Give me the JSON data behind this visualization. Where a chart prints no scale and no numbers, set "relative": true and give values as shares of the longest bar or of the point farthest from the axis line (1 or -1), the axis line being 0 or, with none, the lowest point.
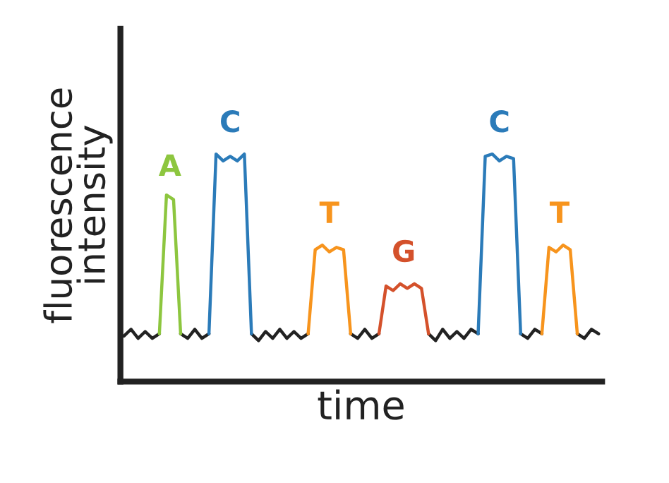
{
  "chart_data": {
    "type": "line",
    "relative": true,
    "xlabel": "time",
    "ylabel": "fluorescence\nintensity",
    "tick_labels": false,
    "categories": [
      null,
      null,
      null,
      null,
      null,
      null,
      null,
      null,
      null,
      null,
      null,
      null,
      null,
      null,
      null,
      null,
      null,
      null,
      null,
      null,
      null,
      null,
      null,
      null,
      null,
      null,
      null,
      null,
      null,
      null,
      null,
      null,
      null,
      null,
      null,
      null,
      null,
      null,
      null,
      null,
      null,
      null,
      null,
      null,
      null,
      null,
      null,
      null,
      null,
      null,
      null,
      null,
      null,
      null,
      null,
      null,
      null,
      null,
      null,
      null,
      null,
      null,
      null,
      null,
      null,
      null,
      null,
      null
    ],
    "series": [
      {
        "color": "#222222",
        "values": [
          0.2,
          0.23,
          0.19,
          0.22,
          0.19,
          0.21,
          null,
          null,
          0.21,
          0.19,
          0.23,
          0.19,
          0.21,
          null,
          null,
          null,
          null,
          null,
          0.21,
          0.18,
          0.22,
          0.19,
          0.23,
          0.19,
          0.22,
          0.19,
          0.21,
          null,
          null,
          null,
          null,
          null,
          0.21,
          0.19,
          0.23,
          0.19,
          0.21,
          null,
          null,
          null,
          null,
          null,
          null,
          0.21,
          0.18,
          0.23,
          0.19,
          0.22,
          0.19,
          0.23,
          0.21,
          null,
          null,
          null,
          null,
          null,
          0.21,
          0.19,
          0.23,
          0.21,
          null,
          null,
          null,
          null,
          0.21,
          0.19,
          0.23,
          0.21
        ]
      },
      {
        "name": "A",
        "color": "#8dc63f",
        "values": [
          null,
          null,
          null,
          null,
          null,
          0.21,
          0.82,
          0.8,
          0.21,
          null,
          null,
          null,
          null,
          null,
          null,
          null,
          null,
          null,
          null,
          null,
          null,
          null,
          null,
          null,
          null,
          null,
          null,
          null,
          null,
          null,
          null,
          null,
          null,
          null,
          null,
          null,
          null,
          null,
          null,
          null,
          null,
          null,
          null,
          null,
          null,
          null,
          null,
          null,
          null,
          null,
          null,
          null,
          null,
          null,
          null,
          null,
          null,
          null,
          null,
          null,
          null,
          null,
          null,
          null,
          null,
          null,
          null,
          null
        ]
      },
      {
        "name": "C",
        "color": "#2b7bb9",
        "values": [
          null,
          null,
          null,
          null,
          null,
          null,
          null,
          null,
          null,
          null,
          null,
          null,
          0.21,
          1.0,
          0.97,
          0.99,
          0.97,
          1.0,
          0.21,
          null,
          null,
          null,
          null,
          null,
          null,
          null,
          null,
          null,
          null,
          null,
          null,
          null,
          null,
          null,
          null,
          null,
          null,
          null,
          null,
          null,
          null,
          null,
          null,
          null,
          null,
          null,
          null,
          null,
          null,
          null,
          null,
          null,
          null,
          null,
          null,
          null,
          null,
          null,
          null,
          null,
          null,
          null,
          null,
          null,
          null,
          null,
          null,
          null
        ]
      },
      {
        "name": "T",
        "color": "#f7941d",
        "values": [
          null,
          null,
          null,
          null,
          null,
          null,
          null,
          null,
          null,
          null,
          null,
          null,
          null,
          null,
          null,
          null,
          null,
          null,
          null,
          null,
          null,
          null,
          null,
          null,
          null,
          null,
          0.21,
          0.58,
          0.6,
          0.57,
          0.59,
          0.58,
          0.21,
          null,
          null,
          null,
          null,
          null,
          null,
          null,
          null,
          null,
          null,
          null,
          null,
          null,
          null,
          null,
          null,
          null,
          null,
          null,
          null,
          null,
          null,
          null,
          null,
          null,
          null,
          null,
          null,
          null,
          null,
          null,
          null,
          null,
          null,
          null
        ]
      },
      {
        "name": "G",
        "color": "#d4512b",
        "values": [
          null,
          null,
          null,
          null,
          null,
          null,
          null,
          null,
          null,
          null,
          null,
          null,
          null,
          null,
          null,
          null,
          null,
          null,
          null,
          null,
          null,
          null,
          null,
          null,
          null,
          null,
          null,
          null,
          null,
          null,
          null,
          null,
          null,
          null,
          null,
          null,
          0.21,
          0.42,
          0.4,
          0.43,
          0.41,
          0.43,
          0.41,
          0.21,
          null,
          null,
          null,
          null,
          null,
          null,
          null,
          null,
          null,
          null,
          null,
          null,
          null,
          null,
          null,
          null,
          null,
          null,
          null,
          null,
          null,
          null,
          null,
          null
        ]
      },
      {
        "name": "C",
        "color": "#2b7bb9",
        "values": [
          null,
          null,
          null,
          null,
          null,
          null,
          null,
          null,
          null,
          null,
          null,
          null,
          null,
          null,
          null,
          null,
          null,
          null,
          null,
          null,
          null,
          null,
          null,
          null,
          null,
          null,
          null,
          null,
          null,
          null,
          null,
          null,
          null,
          null,
          null,
          null,
          null,
          null,
          null,
          null,
          null,
          null,
          null,
          null,
          null,
          null,
          null,
          null,
          null,
          null,
          0.21,
          0.99,
          1.0,
          0.97,
          0.99,
          0.98,
          0.21,
          null,
          null,
          null,
          null,
          null,
          null,
          null,
          null,
          null,
          null,
          null
        ]
      },
      {
        "name": "T",
        "color": "#f7941d",
        "values": [
          null,
          null,
          null,
          null,
          null,
          null,
          null,
          null,
          null,
          null,
          null,
          null,
          null,
          null,
          null,
          null,
          null,
          null,
          null,
          null,
          null,
          null,
          null,
          null,
          null,
          null,
          null,
          null,
          null,
          null,
          null,
          null,
          null,
          null,
          null,
          null,
          null,
          null,
          null,
          null,
          null,
          null,
          null,
          null,
          null,
          null,
          null,
          null,
          null,
          null,
          null,
          null,
          null,
          null,
          null,
          null,
          null,
          null,
          null,
          0.21,
          0.59,
          0.57,
          0.6,
          0.58,
          0.21,
          null,
          null,
          null
        ]
      }
    ]
  }
}
